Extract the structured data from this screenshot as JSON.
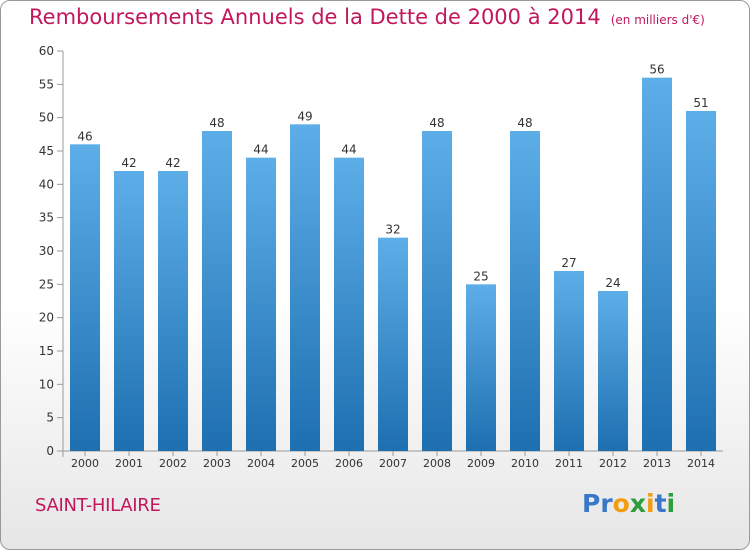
{
  "header": {
    "title": "Remboursements Annuels de la Dette de 2000 à 2014",
    "unit": "(en milliers d'€)"
  },
  "footer": {
    "commune": "SAINT-HILAIRE",
    "logo": "Proxiti"
  },
  "colors": {
    "title": "#c2185b",
    "bar_top": "#5daee8",
    "bar_bottom": "#1e6fb0"
  },
  "chart_data": {
    "type": "bar",
    "title": "Remboursements Annuels de la Dette de 2000 à 2014",
    "xlabel": "",
    "ylabel": "",
    "categories": [
      "2000",
      "2001",
      "2002",
      "2003",
      "2004",
      "2005",
      "2006",
      "2007",
      "2008",
      "2009",
      "2010",
      "2011",
      "2012",
      "2013",
      "2014"
    ],
    "values": [
      46,
      42,
      42,
      48,
      44,
      49,
      44,
      32,
      48,
      25,
      48,
      27,
      24,
      56,
      51
    ],
    "ylim": [
      0,
      60
    ],
    "yticks": [
      0,
      5,
      10,
      15,
      20,
      25,
      30,
      35,
      40,
      45,
      50,
      55,
      60
    ],
    "grid": false,
    "data_labels": true
  }
}
